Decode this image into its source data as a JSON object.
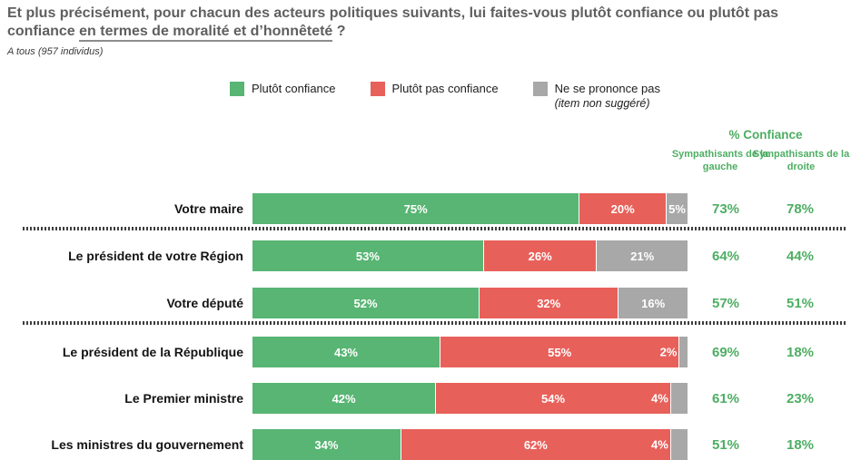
{
  "title": {
    "part1": "Et plus précisément, pour chacun des acteurs politiques suivants, lui faites-vous plutôt confiance ou plutôt pas confiance ",
    "underlined": "en termes de moralité et d’honnêteté",
    "part3": " ?"
  },
  "subtitle": "A tous (957 individus)",
  "legend": [
    {
      "label": "Plutôt confiance",
      "color": "#58b573"
    },
    {
      "label": "Plutôt pas confiance",
      "color": "#e8605a"
    },
    {
      "label": "Ne se prononce pas",
      "sublabel": "(item non suggéré)",
      "color": "#a8a8a8"
    }
  ],
  "right_panel": {
    "header": "% Confiance",
    "col1": "Sympathisants de la gauche",
    "col2": "Sympathisants de la droite",
    "text_color": "#4dae62"
  },
  "chart_data": {
    "type": "bar",
    "orientation": "horizontal",
    "stacked": true,
    "xlim": [
      0,
      100
    ],
    "value_suffix": "%",
    "categories": [
      "Votre maire",
      "Le président de votre Région",
      "Votre député",
      "Le président de la République",
      "Le Premier ministre",
      "Les ministres du gouvernement"
    ],
    "series": [
      {
        "name": "Plutôt confiance",
        "color": "#58b573",
        "values": [
          75,
          53,
          52,
          43,
          42,
          34
        ]
      },
      {
        "name": "Plutôt pas confiance",
        "color": "#e8605a",
        "values": [
          20,
          26,
          32,
          55,
          54,
          62
        ]
      },
      {
        "name": "Ne se prononce pas (item non suggéré)",
        "color": "#a8a8a8",
        "values": [
          5,
          21,
          16,
          2,
          4,
          4
        ]
      }
    ],
    "confidence_table": {
      "header": "% Confiance",
      "columns": [
        "Sympathisants de la gauche",
        "Sympathisants de la droite"
      ],
      "rows": [
        [
          73,
          78
        ],
        [
          64,
          44
        ],
        [
          57,
          51
        ],
        [
          69,
          18
        ],
        [
          61,
          23
        ],
        [
          51,
          18
        ]
      ]
    },
    "separators_after_rows": [
      0,
      2
    ]
  }
}
